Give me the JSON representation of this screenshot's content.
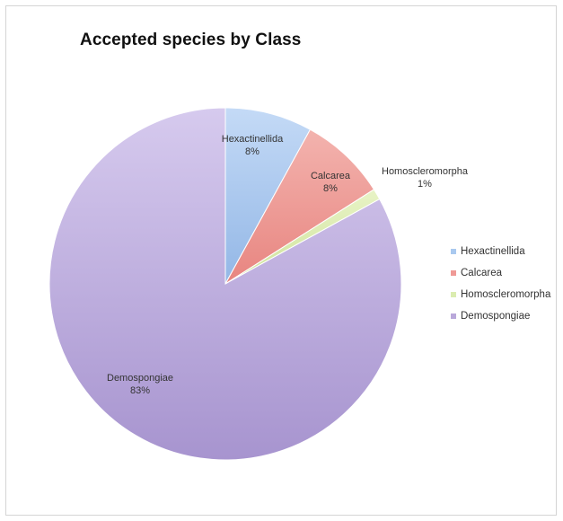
{
  "chart_data": {
    "type": "pie",
    "title": "Accepted species by Class",
    "categories": [
      "Hexactinellida",
      "Calcarea",
      "Homoscleromorpha",
      "Demospongiae"
    ],
    "values": [
      8,
      8,
      1,
      83
    ],
    "percent_labels": [
      "8%",
      "8%",
      "1%",
      "83%"
    ],
    "colors": [
      "#a9c9ef",
      "#ef9a96",
      "#dbecb0",
      "#b9a8da"
    ],
    "legend_position": "right"
  }
}
